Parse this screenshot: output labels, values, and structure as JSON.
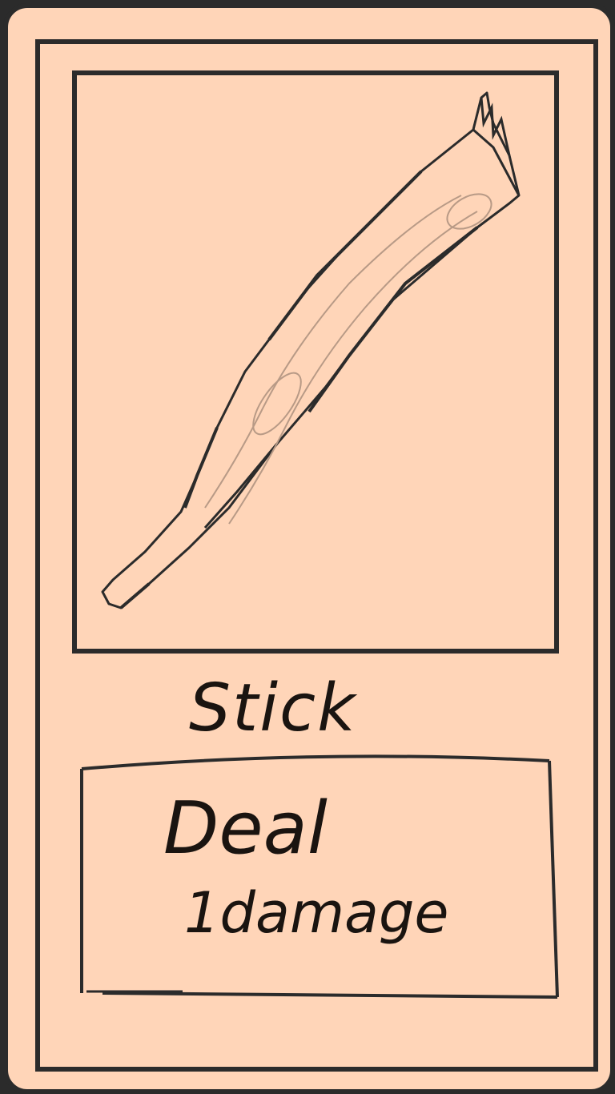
{
  "card": {
    "name": "Stick",
    "description_line_1": "Deal",
    "description_line_2": "1damage",
    "art": "stick-sketch",
    "colors": {
      "background": "#ffd5b8",
      "ink": "#2b2b2b"
    }
  }
}
